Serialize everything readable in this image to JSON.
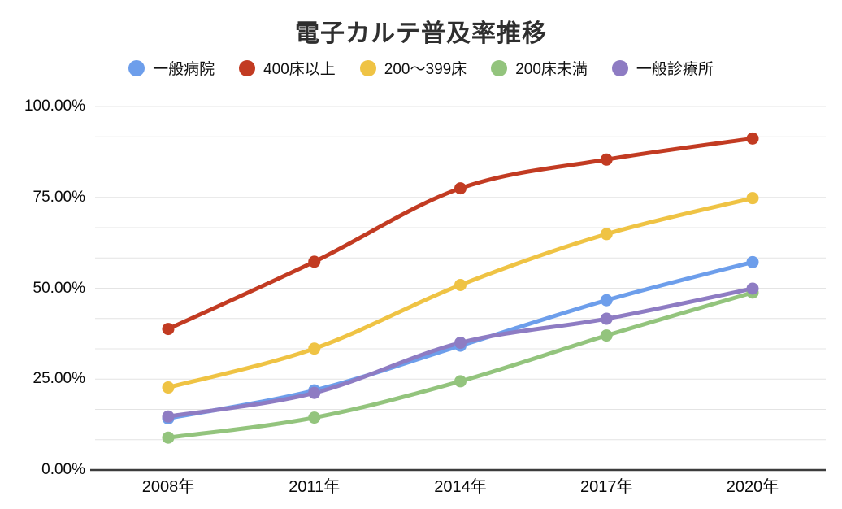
{
  "chart_data": {
    "type": "line",
    "title": "電子カルテ普及率推移",
    "x": [
      "2008年",
      "2011年",
      "2014年",
      "2017年",
      "2020年"
    ],
    "y_tick_labels": [
      "0.00%",
      "25.00%",
      "50.00%",
      "75.00%",
      "100.00%"
    ],
    "y_ticks": [
      0,
      25,
      50,
      75,
      100
    ],
    "ylim": [
      0,
      100
    ],
    "y_unit": "%",
    "grid": "horizontal light-gray lines, minor lines at thirds of 25%",
    "legend_position": "top",
    "colors": {
      "gridline": "#E4E4E4",
      "axis_line": "#3C3C3C",
      "title_text": "#2F2F2F",
      "tick_text": "#0A0A0A"
    },
    "series": [
      {
        "name": "一般病院",
        "color": "#6D9EEB",
        "values": [
          14.2,
          21.9,
          34.2,
          46.7,
          57.2
        ]
      },
      {
        "name": "400床以上",
        "color": "#C23B22",
        "values": [
          38.8,
          57.3,
          77.5,
          85.4,
          91.2
        ]
      },
      {
        "name": "200〜399床",
        "color": "#EFC344",
        "values": [
          22.7,
          33.4,
          50.9,
          64.9,
          74.8
        ]
      },
      {
        "name": "200床未満",
        "color": "#93C47D",
        "values": [
          8.9,
          14.4,
          24.4,
          37.0,
          48.8
        ]
      },
      {
        "name": "一般診療所",
        "color": "#8E7CC3",
        "values": [
          14.7,
          21.2,
          35.0,
          41.6,
          49.9
        ]
      }
    ]
  }
}
